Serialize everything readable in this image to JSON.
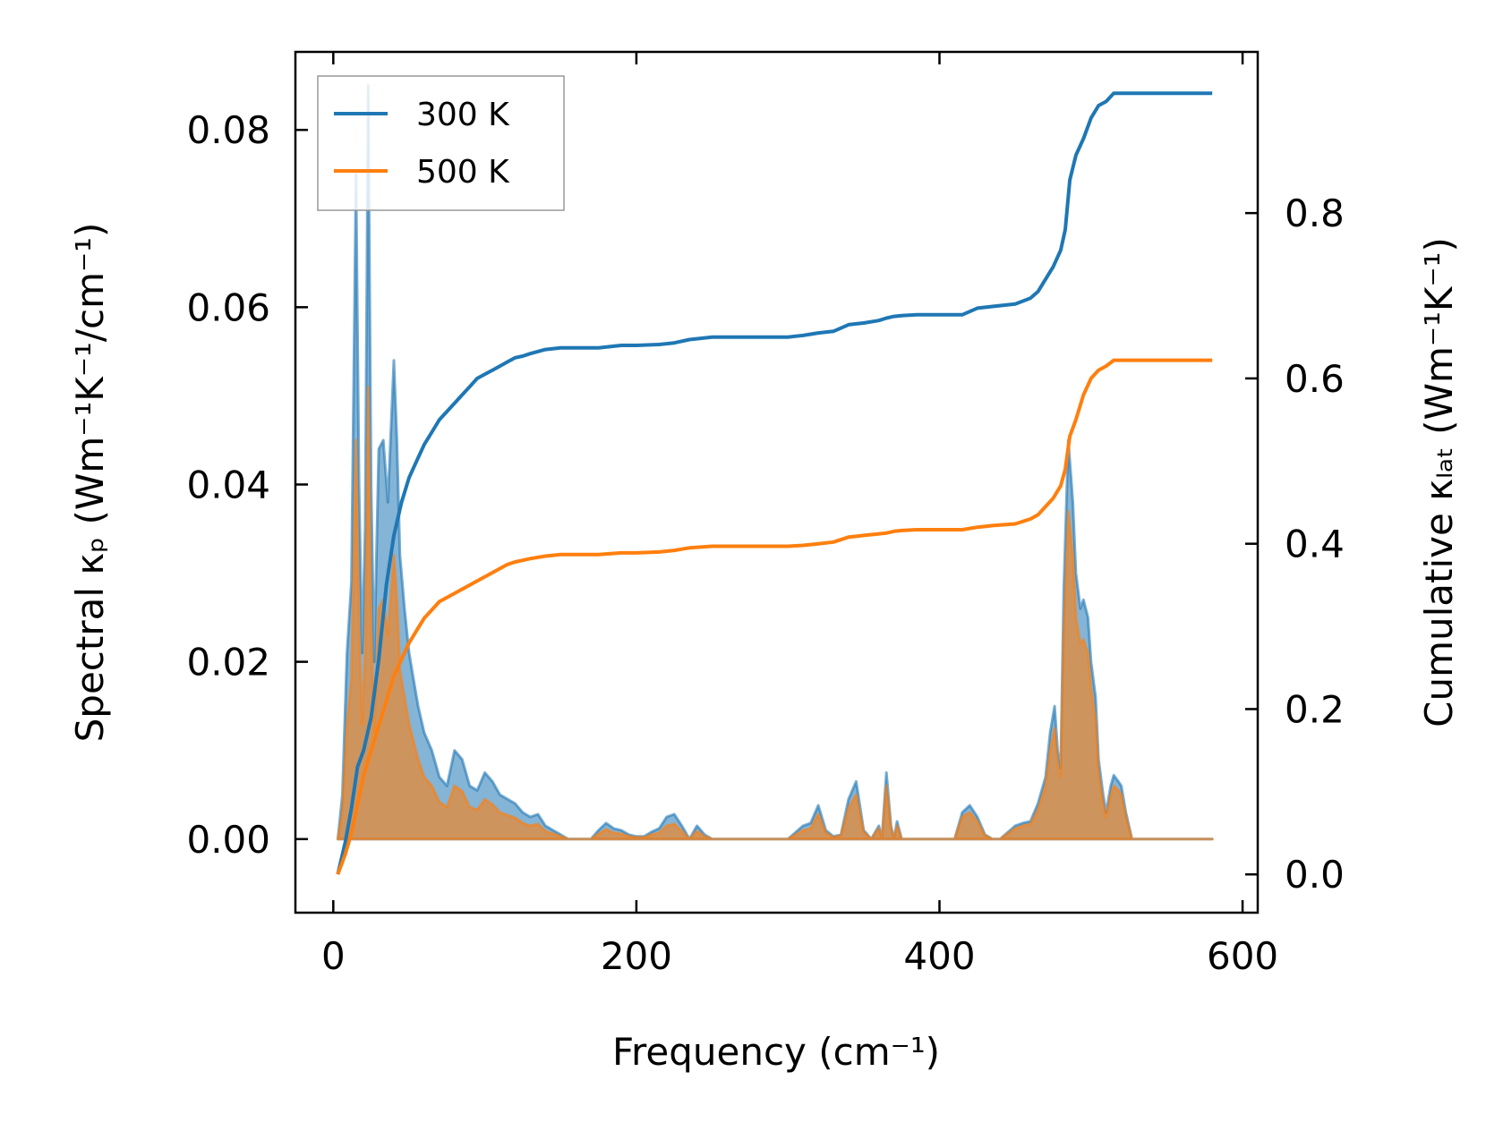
{
  "chart_data": {
    "type": "line",
    "xlabel": "Frequency (cm⁻¹)",
    "ylabel_left": "Spectral κₚ (Wm⁻¹K⁻¹/cm⁻¹)",
    "ylabel_right": "Cumulative κₗₐₜ (Wm⁻¹K⁻¹)",
    "xlim": [
      -25,
      610
    ],
    "ylim_left": [
      -0.0083,
      0.0888
    ],
    "ylim_right": [
      -0.0463,
      0.995
    ],
    "xticks": [
      0,
      200,
      400,
      600
    ],
    "xtick_labels": [
      "0",
      "200",
      "400",
      "600"
    ],
    "yticks_left": [
      0.0,
      0.02,
      0.04,
      0.06,
      0.08
    ],
    "ytick_labels_left": [
      "0.00",
      "0.02",
      "0.04",
      "0.06",
      "0.08"
    ],
    "yticks_right": [
      0.0,
      0.2,
      0.4,
      0.6,
      0.8
    ],
    "ytick_labels_right": [
      "0.0",
      "0.2",
      "0.4",
      "0.6",
      "0.8"
    ],
    "legend": {
      "position": "top-left",
      "entries": [
        "300 K",
        "500 K"
      ]
    },
    "series": [
      {
        "name": "300 K",
        "color": "#1f77b4",
        "spectral": {
          "x": [
            3,
            6,
            9,
            12,
            15,
            17,
            19,
            21,
            23,
            25,
            27,
            30,
            33,
            36,
            40,
            42,
            44,
            47,
            50,
            53,
            56,
            60,
            65,
            70,
            75,
            80,
            85,
            90,
            95,
            100,
            105,
            110,
            115,
            120,
            125,
            130,
            135,
            140,
            145,
            150,
            155,
            160,
            165,
            170,
            175,
            180,
            185,
            190,
            195,
            200,
            205,
            210,
            215,
            220,
            225,
            230,
            235,
            240,
            245,
            250,
            255,
            260,
            300,
            310,
            315,
            320,
            325,
            330,
            335,
            340,
            345,
            350,
            355,
            360,
            362,
            365,
            368,
            370,
            372,
            375,
            380,
            410,
            415,
            420,
            425,
            430,
            435,
            440,
            450,
            455,
            460,
            465,
            470,
            473,
            476,
            478,
            480,
            482,
            485,
            488,
            490,
            493,
            495,
            498,
            500,
            503,
            505,
            508,
            510,
            513,
            515,
            518,
            520,
            523,
            527,
            580
          ],
          "y": [
            0,
            0.005,
            0.021,
            0.029,
            0.075,
            0.04,
            0.021,
            0.035,
            0.085,
            0.04,
            0.02,
            0.044,
            0.045,
            0.038,
            0.054,
            0.045,
            0.032,
            0.026,
            0.021,
            0.018,
            0.015,
            0.012,
            0.01,
            0.007,
            0.006,
            0.01,
            0.009,
            0.006,
            0.0055,
            0.0075,
            0.0065,
            0.005,
            0.0045,
            0.004,
            0.003,
            0.0025,
            0.0028,
            0.0015,
            0.001,
            0.0005,
            0,
            0,
            0,
            0,
            0.001,
            0.0018,
            0.0012,
            0.001,
            0.0005,
            0.0003,
            0.0003,
            0.0008,
            0.0012,
            0.0025,
            0.0028,
            0.0015,
            0,
            0.0015,
            0.0005,
            0,
            0,
            0,
            0,
            0.0015,
            0.0018,
            0.0038,
            0.001,
            0.0003,
            0.0005,
            0.0045,
            0.0065,
            0.001,
            0,
            0.0015,
            0,
            0.0075,
            0.0015,
            0,
            0.002,
            0,
            0,
            0,
            0.003,
            0.0038,
            0.0025,
            0.0005,
            0,
            0,
            0.0015,
            0.0018,
            0.002,
            0.004,
            0.007,
            0.012,
            0.015,
            0.01,
            0.008,
            0.028,
            0.045,
            0.038,
            0.03,
            0.026,
            0.027,
            0.025,
            0.02,
            0.016,
            0.009,
            0.005,
            0.003,
            0.006,
            0.0072,
            0.0065,
            0.006,
            0.003,
            0,
            0
          ]
        },
        "cumulative": {
          "x": [
            3,
            8,
            12,
            16,
            20,
            25,
            30,
            35,
            40,
            45,
            50,
            55,
            60,
            65,
            70,
            75,
            80,
            85,
            90,
            95,
            100,
            105,
            110,
            115,
            120,
            125,
            130,
            140,
            150,
            160,
            175,
            190,
            200,
            215,
            225,
            235,
            250,
            270,
            300,
            310,
            320,
            330,
            340,
            345,
            350,
            360,
            365,
            370,
            375,
            385,
            415,
            425,
            435,
            450,
            460,
            465,
            470,
            475,
            480,
            483,
            486,
            490,
            495,
            500,
            505,
            510,
            515,
            520,
            580
          ],
          "y": [
            0,
            0.04,
            0.08,
            0.13,
            0.15,
            0.19,
            0.26,
            0.35,
            0.41,
            0.45,
            0.48,
            0.5,
            0.52,
            0.535,
            0.55,
            0.56,
            0.57,
            0.58,
            0.59,
            0.6,
            0.605,
            0.61,
            0.615,
            0.62,
            0.625,
            0.627,
            0.63,
            0.635,
            0.637,
            0.637,
            0.637,
            0.64,
            0.64,
            0.641,
            0.643,
            0.647,
            0.65,
            0.65,
            0.65,
            0.652,
            0.655,
            0.657,
            0.665,
            0.666,
            0.667,
            0.67,
            0.673,
            0.675,
            0.676,
            0.677,
            0.677,
            0.685,
            0.687,
            0.69,
            0.697,
            0.705,
            0.72,
            0.735,
            0.755,
            0.78,
            0.84,
            0.87,
            0.89,
            0.915,
            0.93,
            0.935,
            0.945,
            0.945,
            0.945
          ]
        }
      },
      {
        "name": "500 K",
        "color": "#ff7f0e",
        "spectral": {
          "x": [
            3,
            6,
            9,
            12,
            15,
            17,
            19,
            21,
            23,
            25,
            27,
            30,
            33,
            36,
            40,
            42,
            44,
            47,
            50,
            53,
            56,
            60,
            65,
            70,
            75,
            80,
            85,
            90,
            95,
            100,
            105,
            110,
            115,
            120,
            125,
            130,
            135,
            140,
            145,
            150,
            155,
            160,
            165,
            170,
            175,
            180,
            185,
            190,
            195,
            200,
            205,
            210,
            215,
            220,
            225,
            230,
            235,
            240,
            245,
            250,
            255,
            260,
            300,
            310,
            315,
            320,
            325,
            330,
            335,
            340,
            345,
            350,
            355,
            360,
            362,
            365,
            368,
            370,
            372,
            375,
            380,
            410,
            415,
            420,
            425,
            430,
            435,
            440,
            450,
            455,
            460,
            465,
            470,
            473,
            476,
            478,
            480,
            482,
            485,
            488,
            490,
            493,
            495,
            498,
            500,
            503,
            505,
            508,
            510,
            513,
            515,
            518,
            520,
            523,
            527,
            580
          ],
          "y": [
            0,
            0.003,
            0.013,
            0.018,
            0.045,
            0.024,
            0.013,
            0.021,
            0.051,
            0.024,
            0.012,
            0.026,
            0.027,
            0.023,
            0.032,
            0.027,
            0.019,
            0.016,
            0.013,
            0.011,
            0.009,
            0.007,
            0.006,
            0.0042,
            0.0036,
            0.006,
            0.0054,
            0.0036,
            0.0033,
            0.0045,
            0.0039,
            0.003,
            0.0027,
            0.0024,
            0.0018,
            0.0015,
            0.0017,
            0.0009,
            0.0006,
            0.0003,
            0,
            0,
            0,
            0,
            0.0006,
            0.0011,
            0.0007,
            0.0006,
            0.0003,
            0.0002,
            0.0002,
            0.0005,
            0.0007,
            0.0015,
            0.0017,
            0.0009,
            0,
            0.0009,
            0.0003,
            0,
            0,
            0,
            0,
            0.001,
            0.0012,
            0.0028,
            0.0007,
            0.0002,
            0.0004,
            0.0035,
            0.005,
            0.0008,
            0,
            0.0012,
            0,
            0.006,
            0.0012,
            0,
            0.0015,
            0,
            0,
            0,
            0.0025,
            0.003,
            0.002,
            0.0004,
            0,
            0,
            0.0012,
            0.0015,
            0.0017,
            0.0033,
            0.006,
            0.01,
            0.0125,
            0.0085,
            0.007,
            0.023,
            0.037,
            0.032,
            0.025,
            0.022,
            0.0225,
            0.021,
            0.017,
            0.0135,
            0.0075,
            0.004,
            0.0025,
            0.005,
            0.006,
            0.0055,
            0.005,
            0.0025,
            0,
            0
          ]
        },
        "cumulative": {
          "x": [
            3,
            8,
            12,
            16,
            20,
            25,
            30,
            35,
            40,
            45,
            50,
            55,
            60,
            65,
            70,
            75,
            80,
            85,
            90,
            95,
            100,
            105,
            110,
            115,
            120,
            125,
            130,
            140,
            150,
            160,
            175,
            190,
            200,
            215,
            225,
            235,
            250,
            270,
            300,
            310,
            320,
            330,
            340,
            345,
            350,
            360,
            365,
            370,
            375,
            385,
            415,
            425,
            435,
            450,
            460,
            465,
            470,
            475,
            480,
            483,
            486,
            490,
            495,
            500,
            505,
            510,
            515,
            520,
            580
          ],
          "y": [
            0,
            0.025,
            0.05,
            0.085,
            0.12,
            0.15,
            0.18,
            0.21,
            0.24,
            0.26,
            0.28,
            0.295,
            0.31,
            0.32,
            0.33,
            0.335,
            0.34,
            0.345,
            0.35,
            0.355,
            0.36,
            0.365,
            0.37,
            0.375,
            0.378,
            0.38,
            0.382,
            0.385,
            0.387,
            0.387,
            0.387,
            0.389,
            0.389,
            0.39,
            0.392,
            0.395,
            0.397,
            0.397,
            0.397,
            0.398,
            0.4,
            0.402,
            0.408,
            0.409,
            0.41,
            0.412,
            0.413,
            0.415,
            0.416,
            0.417,
            0.417,
            0.42,
            0.422,
            0.424,
            0.43,
            0.435,
            0.445,
            0.455,
            0.47,
            0.49,
            0.53,
            0.55,
            0.58,
            0.6,
            0.61,
            0.615,
            0.622,
            0.622,
            0.622
          ]
        }
      }
    ]
  }
}
